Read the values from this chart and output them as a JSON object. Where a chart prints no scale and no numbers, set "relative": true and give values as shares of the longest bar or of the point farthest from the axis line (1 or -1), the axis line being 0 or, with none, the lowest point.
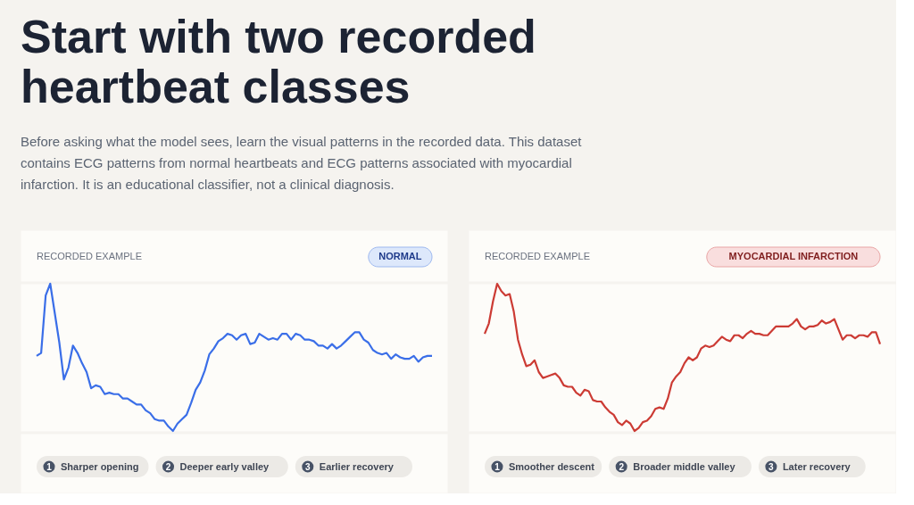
{
  "chart_data": [
    {
      "type": "other",
      "title": "Start with two recorded heartbeat classes",
      "subtitle": "Before asking what the model sees, learn the visual patterns in the recorded data. This dataset contains ECG patterns from normal heartbeats and ECG patterns associated with myocardial infarction. It is an educational classifier, not a clinical diagnosis."
    },
    {
      "type": "line",
      "relative": true,
      "title": "NORMAL",
      "subtitle": "RECORDED EXAMPLE",
      "annotations": [
        "1 Sharper opening",
        "2 Deeper early valley",
        "3 Earlier recovery"
      ],
      "categories": [
        null,
        null,
        null,
        null,
        null,
        null,
        null,
        null,
        null,
        null,
        null,
        null,
        null,
        null,
        null,
        null,
        null,
        null,
        null,
        null,
        null,
        null,
        null,
        null,
        null,
        null,
        null,
        null,
        null,
        null,
        null,
        null,
        null,
        null,
        null,
        null,
        null,
        null,
        null,
        null,
        null,
        null,
        null,
        null,
        null,
        null,
        null,
        null,
        null,
        null,
        null,
        null,
        null,
        null,
        null,
        null,
        null,
        null,
        null,
        null,
        null,
        null,
        null,
        null,
        null,
        null,
        null,
        null,
        null,
        null,
        null,
        null,
        null,
        null,
        null,
        null,
        null,
        null,
        null,
        null,
        null,
        null,
        null,
        null,
        null,
        null,
        null,
        null
      ],
      "series": [
        {
          "color": "#3a6ee8",
          "values": [
            0.51,
            0.53,
            0.92,
            1.0,
            0.8,
            0.6,
            0.35,
            0.43,
            0.58,
            0.53,
            0.46,
            0.4,
            0.29,
            0.31,
            0.3,
            0.25,
            0.26,
            0.25,
            0.25,
            0.22,
            0.22,
            0.2,
            0.18,
            0.18,
            0.14,
            0.12,
            0.08,
            0.07,
            0.07,
            0.03,
            0.0,
            0.05,
            0.08,
            0.11,
            0.19,
            0.28,
            0.33,
            0.41,
            0.52,
            0.56,
            0.61,
            0.63,
            0.66,
            0.65,
            0.62,
            0.65,
            0.66,
            0.59,
            0.6,
            0.66,
            0.64,
            0.62,
            0.63,
            0.62,
            0.66,
            0.66,
            0.62,
            0.66,
            0.65,
            0.62,
            0.62,
            0.61,
            0.58,
            0.58,
            0.56,
            0.59,
            0.56,
            0.58,
            0.61,
            0.64,
            0.67,
            0.67,
            0.62,
            0.6,
            0.55,
            0.53,
            0.52,
            0.53,
            0.49,
            0.52,
            0.5,
            0.49,
            0.49,
            0.51,
            0.47,
            0.5,
            0.51,
            0.51
          ]
        }
      ]
    },
    {
      "type": "line",
      "relative": true,
      "title": "MYOCARDIAL INFARCTION",
      "subtitle": "RECORDED EXAMPLE",
      "annotations": [
        "1 Smoother descent",
        "2 Broader middle valley",
        "3 Later recovery"
      ],
      "categories": [
        null,
        null,
        null,
        null,
        null,
        null,
        null,
        null,
        null,
        null,
        null,
        null,
        null,
        null,
        null,
        null,
        null,
        null,
        null,
        null,
        null,
        null,
        null,
        null,
        null,
        null,
        null,
        null,
        null,
        null,
        null,
        null,
        null,
        null,
        null,
        null,
        null,
        null,
        null,
        null,
        null,
        null,
        null,
        null,
        null,
        null,
        null,
        null,
        null,
        null,
        null,
        null,
        null,
        null,
        null,
        null,
        null,
        null,
        null,
        null,
        null,
        null,
        null,
        null,
        null,
        null,
        null,
        null,
        null,
        null,
        null,
        null,
        null,
        null,
        null,
        null,
        null,
        null,
        null,
        null,
        null,
        null,
        null,
        null,
        null,
        null,
        null,
        null,
        null,
        null,
        null,
        null,
        null,
        null,
        null,
        null
      ],
      "series": [
        {
          "color": "#cc3b34",
          "values": [
            0.66,
            0.73,
            0.88,
            1.0,
            0.95,
            0.92,
            0.93,
            0.81,
            0.62,
            0.52,
            0.44,
            0.45,
            0.48,
            0.4,
            0.36,
            0.37,
            0.38,
            0.39,
            0.36,
            0.31,
            0.3,
            0.3,
            0.26,
            0.24,
            0.28,
            0.27,
            0.21,
            0.2,
            0.2,
            0.16,
            0.13,
            0.11,
            0.06,
            0.04,
            0.07,
            0.05,
            0.0,
            0.02,
            0.06,
            0.07,
            0.1,
            0.15,
            0.16,
            0.15,
            0.22,
            0.33,
            0.37,
            0.4,
            0.46,
            0.5,
            0.48,
            0.5,
            0.56,
            0.58,
            0.57,
            0.58,
            0.61,
            0.64,
            0.62,
            0.61,
            0.65,
            0.65,
            0.63,
            0.66,
            0.68,
            0.66,
            0.66,
            0.65,
            0.65,
            0.68,
            0.71,
            0.71,
            0.71,
            0.71,
            0.73,
            0.76,
            0.71,
            0.69,
            0.71,
            0.71,
            0.72,
            0.75,
            0.73,
            0.74,
            0.76,
            0.69,
            0.62,
            0.65,
            0.65,
            0.63,
            0.65,
            0.65,
            0.64,
            0.67,
            0.67,
            0.59
          ]
        }
      ]
    }
  ]
}
